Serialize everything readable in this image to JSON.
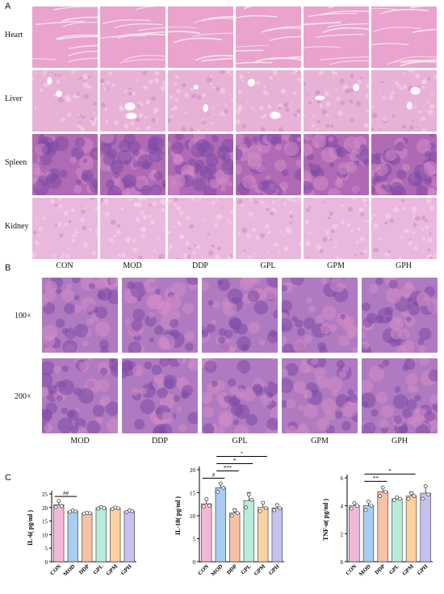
{
  "panels": {
    "A": {
      "letter": "A",
      "rows": [
        "Heart",
        "Liver",
        "Spleen",
        "Kidney"
      ],
      "cols": [
        "CON",
        "MOD",
        "DDP",
        "GPL",
        "GPM",
        "GPH"
      ]
    },
    "B": {
      "letter": "B",
      "rows": [
        "100×",
        "200×"
      ],
      "cols": [
        "MOD",
        "DDP",
        "GPL",
        "GPM",
        "GPH"
      ]
    },
    "C": {
      "letter": "C"
    }
  },
  "colors": {
    "CON": "#f2b8d8",
    "MOD": "#a8cdf0",
    "DDP": "#f6c2a6",
    "GPL": "#b6ecd8",
    "GPM": "#fbd3a0",
    "GPH": "#c6c2f0",
    "tissue_heart": "#e9a3cc",
    "tissue_liver": "#e8b2d6",
    "tissue_spleen": "#b06ab4",
    "tissue_kidney": "#ebb8dd",
    "tumor": "#b07ac0"
  },
  "chart_data": [
    {
      "type": "bar",
      "ylabel": "IL-6( pg/ml )",
      "categories": [
        "CON",
        "MOD",
        "DDP",
        "GPL",
        "GPM",
        "GPH"
      ],
      "values": [
        21.0,
        18.6,
        17.9,
        19.9,
        19.7,
        18.6
      ],
      "errors": [
        1.3,
        0.3,
        0.2,
        0.4,
        0.4,
        0.3
      ],
      "points": [
        [
          20.2,
          22.4,
          20.5
        ],
        [
          18.4,
          18.9,
          18.5
        ],
        [
          17.8,
          18.0,
          17.9
        ],
        [
          19.6,
          20.2,
          19.8
        ],
        [
          19.4,
          20.0,
          19.7
        ],
        [
          18.3,
          18.9,
          18.6
        ]
      ],
      "ylim": [
        0,
        25
      ],
      "yticks": [
        0,
        5,
        10,
        15,
        20,
        25
      ],
      "annotations": [
        {
          "from": 0,
          "to": 1,
          "label": "##"
        }
      ]
    },
    {
      "type": "bar",
      "ylabel": "IL-10( pg/ml )",
      "categories": [
        "CON",
        "MOD",
        "DDP",
        "GPL",
        "GPM",
        "GPH"
      ],
      "values": [
        12.6,
        16.1,
        10.6,
        13.3,
        11.8,
        11.7
      ],
      "errors": [
        1.0,
        1.0,
        0.9,
        1.7,
        1.2,
        0.8
      ],
      "points": [
        [
          12.0,
          13.6,
          12.2
        ],
        [
          15.2,
          17.0,
          16.1
        ],
        [
          10.0,
          11.2,
          10.6
        ],
        [
          11.8,
          14.6,
          13.5
        ],
        [
          11.0,
          12.8,
          11.6
        ],
        [
          11.2,
          12.3,
          11.6
        ]
      ],
      "ylim": [
        0,
        20
      ],
      "yticks": [
        0,
        5,
        10,
        15,
        20
      ],
      "annotations": [
        {
          "from": 0,
          "to": 1,
          "label": "#"
        },
        {
          "from": 1,
          "to": 2,
          "label": "***"
        },
        {
          "from": 1,
          "to": 3,
          "label": "*"
        },
        {
          "from": 1,
          "to": 4,
          "label": "*"
        },
        {
          "from": 1,
          "to": 5,
          "label": "**"
        }
      ]
    },
    {
      "type": "bar",
      "ylabel": "TNF-α( pg/ml )",
      "categories": [
        "CON",
        "MOD",
        "DDP",
        "GPL",
        "GPM",
        "GPH"
      ],
      "values": [
        4.0,
        4.0,
        5.0,
        4.5,
        4.7,
        4.9
      ],
      "errors": [
        0.2,
        0.3,
        0.3,
        0.1,
        0.3,
        0.5
      ],
      "points": [
        [
          3.8,
          4.2,
          4.0
        ],
        [
          3.7,
          4.3,
          4.0
        ],
        [
          4.7,
          5.3,
          5.0
        ],
        [
          4.4,
          4.6,
          4.5
        ],
        [
          4.5,
          4.9,
          4.7
        ],
        [
          4.5,
          5.4,
          4.8
        ]
      ],
      "ylim": [
        0,
        6
      ],
      "yticks": [
        0,
        2,
        4,
        6
      ],
      "annotations": [
        {
          "from": 1,
          "to": 2,
          "label": "**"
        },
        {
          "from": 1,
          "to": 4,
          "label": "*"
        }
      ]
    }
  ]
}
